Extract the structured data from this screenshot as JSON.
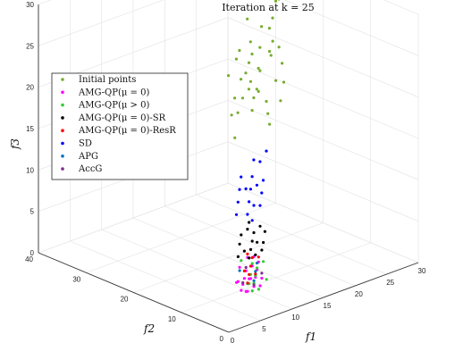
{
  "chart_data": {
    "type": "scatter",
    "title": "Iteration at k = 25",
    "xlabel": "f1",
    "ylabel": "f2",
    "zlabel": "f3",
    "xlim": [
      0,
      30
    ],
    "ylim": [
      0,
      40
    ],
    "zlim": [
      0,
      30
    ],
    "x_ticks": [
      "0",
      "5",
      "10",
      "15",
      "20",
      "25",
      "30"
    ],
    "y_ticks": [
      "0",
      "10",
      "20",
      "30",
      "40"
    ],
    "z_ticks": [
      "0",
      "5",
      "10",
      "15",
      "20",
      "25",
      "30"
    ],
    "grid": true,
    "legend_position": "top-left",
    "series": [
      {
        "name": "Initial points",
        "color": "#77ac30",
        "points": [
          [
            16,
            16,
            20
          ],
          [
            18,
            14,
            22
          ],
          [
            20,
            18,
            24
          ],
          [
            14,
            18,
            18
          ],
          [
            17,
            20,
            21
          ],
          [
            19,
            16,
            26
          ],
          [
            15,
            15,
            19
          ],
          [
            21,
            19,
            23
          ],
          [
            16,
            19,
            25
          ],
          [
            18,
            18,
            20
          ],
          [
            22,
            20,
            27
          ],
          [
            13,
            16,
            16
          ],
          [
            17,
            14,
            17
          ],
          [
            20,
            15,
            21
          ],
          [
            15,
            20,
            22
          ],
          [
            19,
            21,
            19
          ],
          [
            14,
            14,
            23
          ],
          [
            18,
            20,
            28
          ],
          [
            21,
            17,
            18
          ],
          [
            16,
            17,
            24
          ],
          [
            23,
            22,
            25
          ],
          [
            17,
            18,
            26
          ],
          [
            15,
            17,
            20
          ],
          [
            19,
            19,
            22
          ],
          [
            20,
            20,
            24
          ],
          [
            16,
            15,
            21
          ],
          [
            18,
            16,
            19
          ],
          [
            22,
            18,
            22
          ],
          [
            14,
            17,
            25
          ],
          [
            17,
            16,
            23
          ],
          [
            24,
            22,
            28
          ],
          [
            19,
            17,
            17
          ],
          [
            15,
            18,
            18
          ],
          [
            21,
            21,
            26
          ],
          [
            18,
            19,
            24
          ],
          [
            16,
            20,
            19
          ],
          [
            20,
            16,
            25
          ],
          [
            17,
            19,
            22
          ],
          [
            23,
            20,
            29
          ],
          [
            25,
            24,
            30
          ]
        ]
      },
      {
        "name": "AMG-QP(μ = 0)",
        "color": "#ff00ff",
        "points": [
          [
            8,
            7,
            1
          ],
          [
            9,
            8,
            0.5
          ],
          [
            10,
            9,
            1.5
          ],
          [
            11,
            10,
            1
          ],
          [
            12,
            11,
            2
          ],
          [
            9,
            10,
            1.2
          ],
          [
            10,
            8,
            0.8
          ],
          [
            11,
            9,
            1.4
          ],
          [
            12,
            10,
            1.8
          ],
          [
            13,
            11,
            2.2
          ],
          [
            8,
            9,
            1.6
          ],
          [
            10,
            11,
            2.4
          ],
          [
            11,
            8,
            0.6
          ],
          [
            12,
            9,
            1.0
          ],
          [
            9,
            9,
            1.1
          ],
          [
            10,
            10,
            1.3
          ],
          [
            11,
            11,
            1.7
          ],
          [
            13,
            12,
            2.6
          ],
          [
            8,
            8,
            0.9
          ],
          [
            12,
            12,
            2.8
          ]
        ]
      },
      {
        "name": "AMG-QP(μ > 0)",
        "color": "#33cc33",
        "points": [
          [
            9,
            7,
            0.8
          ],
          [
            10,
            8,
            1.2
          ],
          [
            11,
            9,
            1.6
          ],
          [
            12,
            10,
            2.0
          ],
          [
            10,
            9,
            0.9
          ],
          [
            11,
            10,
            1.5
          ],
          [
            12,
            11,
            2.3
          ],
          [
            9,
            8,
            1.4
          ],
          [
            13,
            10,
            2.5
          ],
          [
            10,
            7,
            0.7
          ],
          [
            11,
            12,
            2.7
          ],
          [
            12,
            8,
            1.1
          ]
        ]
      },
      {
        "name": "AMG-QP(μ = 0)-SR",
        "color": "#000000",
        "points": [
          [
            10,
            9,
            4
          ],
          [
            11,
            10,
            4.5
          ],
          [
            12,
            11,
            5
          ],
          [
            13,
            12,
            5.5
          ],
          [
            9,
            10,
            4.2
          ],
          [
            11,
            12,
            5.8
          ],
          [
            12,
            9,
            4.4
          ],
          [
            14,
            12,
            6
          ],
          [
            10,
            11,
            5.2
          ],
          [
            13,
            10,
            4.8
          ],
          [
            12,
            12,
            6.2
          ],
          [
            11,
            9,
            4.1
          ],
          [
            14,
            11,
            5.6
          ],
          [
            10,
            10,
            4.6
          ],
          [
            13,
            13,
            6.5
          ],
          [
            12,
            10,
            5.1
          ]
        ]
      },
      {
        "name": "AMG-QP(μ = 0)-ResR",
        "color": "#ff0000",
        "points": [
          [
            9,
            8,
            1.5
          ],
          [
            10,
            9,
            2
          ],
          [
            11,
            10,
            2.5
          ],
          [
            12,
            11,
            3
          ],
          [
            10,
            10,
            2.2
          ],
          [
            11,
            9,
            1.8
          ],
          [
            12,
            12,
            3.2
          ],
          [
            13,
            11,
            2.8
          ]
        ]
      },
      {
        "name": "SD",
        "color": "#0000ff",
        "points": [
          [
            12,
            12,
            8
          ],
          [
            13,
            13,
            9
          ],
          [
            14,
            14,
            10
          ],
          [
            15,
            15,
            11
          ],
          [
            12,
            14,
            9
          ],
          [
            14,
            12,
            8.5
          ],
          [
            16,
            14,
            10.5
          ],
          [
            13,
            15,
            10
          ],
          [
            15,
            13,
            9.5
          ],
          [
            17,
            16,
            12
          ],
          [
            11,
            13,
            8
          ],
          [
            14,
            16,
            11
          ],
          [
            16,
            16,
            12.5
          ],
          [
            12,
            11,
            7.5
          ],
          [
            15,
            14,
            10.2
          ],
          [
            13,
            12,
            8.8
          ],
          [
            18,
            16,
            13
          ],
          [
            14,
            15,
            9.8
          ]
        ]
      },
      {
        "name": "APG",
        "color": "#0072bd",
        "points": [
          [
            10,
            8,
            1.5
          ],
          [
            11,
            9,
            2.1
          ],
          [
            12,
            10,
            2.6
          ],
          [
            10,
            11,
            2.0
          ]
        ]
      },
      {
        "name": "AccG",
        "color": "#7e2f8e",
        "points": [
          [
            9,
            9,
            1.3
          ],
          [
            11,
            11,
            2.1
          ],
          [
            12,
            9,
            1.6
          ],
          [
            10,
            8,
            1.0
          ]
        ]
      }
    ]
  }
}
